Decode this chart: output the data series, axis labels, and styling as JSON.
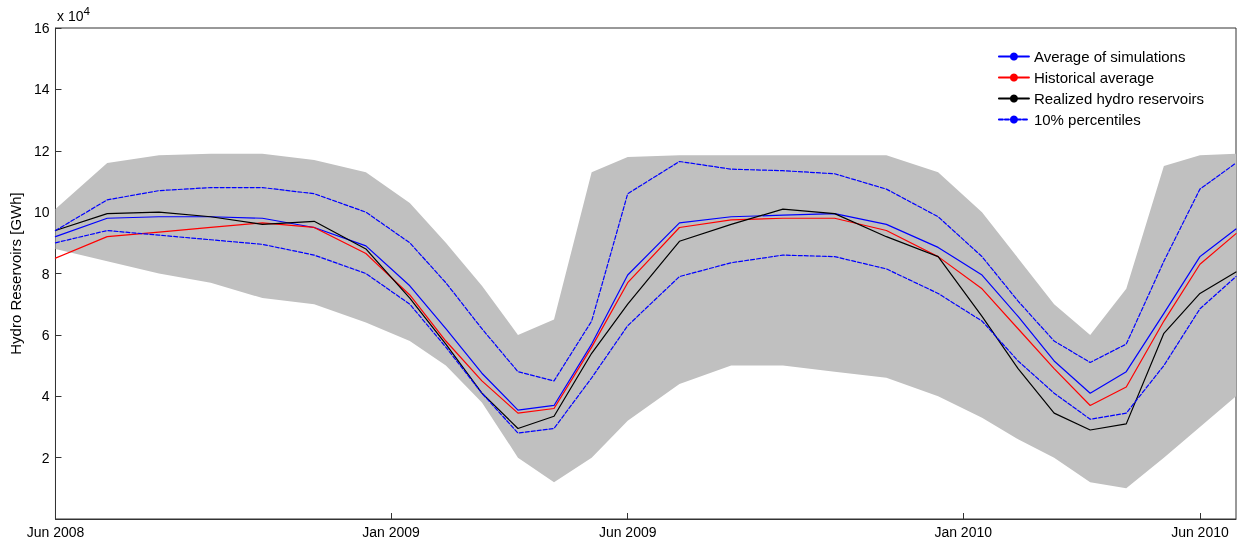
{
  "chart_data": {
    "type": "line",
    "ylabel": "Hydro Reservoirs [GWh]",
    "annotations": [
      "x 10$^{4}$"
    ],
    "x": [
      "2008-06-01",
      "2008-07-04",
      "2008-08-06",
      "2008-09-08",
      "2008-10-11",
      "2008-11-13",
      "2008-12-16",
      "2009-01-13",
      "2009-02-05",
      "2009-02-28",
      "2009-03-23",
      "2009-04-15",
      "2009-05-09",
      "2009-06-01",
      "2009-07-04",
      "2009-08-06",
      "2009-09-08",
      "2009-10-11",
      "2009-11-13",
      "2009-12-16",
      "2010-01-13",
      "2010-02-05",
      "2010-02-28",
      "2010-03-23",
      "2010-04-15",
      "2010-05-09",
      "2010-06-01",
      "2010-06-24"
    ],
    "xlim": [
      "2008-06-01",
      "2010-06-24"
    ],
    "xticks": [
      {
        "value": "2008-06-01",
        "label": "Jun 2008"
      },
      {
        "value": "2009-01-01",
        "label": "Jan 2009"
      },
      {
        "value": "2009-06-01",
        "label": "Jun 2009"
      },
      {
        "value": "2010-01-01",
        "label": "Jan 2010"
      },
      {
        "value": "2010-06-01",
        "label": "Jun 2010"
      }
    ],
    "ylim": [
      0,
      16
    ],
    "yticks": [
      2,
      4,
      6,
      8,
      10,
      12,
      14,
      16
    ],
    "grid": false,
    "legend": "top right",
    "marker": "none",
    "series": [
      {
        "name": "Average of simulations",
        "color": "#0000ff",
        "line_style": "solid",
        "values": [
          9.2,
          9.8,
          9.85,
          9.85,
          9.8,
          9.5,
          8.9,
          7.6,
          6.2,
          4.75,
          3.55,
          3.7,
          5.7,
          7.95,
          9.65,
          9.85,
          9.9,
          9.95,
          9.6,
          8.85,
          7.95,
          6.6,
          5.15,
          4.1,
          4.8,
          6.7,
          8.55,
          9.45
        ],
        "lower": [
          8.8,
          8.4,
          8.0,
          7.7,
          7.2,
          7.0,
          6.4,
          5.8,
          5.0,
          3.8,
          2.0,
          1.2,
          2.0,
          3.2,
          4.4,
          5.0,
          5.0,
          4.8,
          4.6,
          4.0,
          3.3,
          2.6,
          2.0,
          1.2,
          1.0,
          2.0,
          3.0,
          4.0
        ],
        "upper": [
          10.1,
          11.6,
          11.85,
          11.9,
          11.9,
          11.7,
          11.3,
          10.3,
          9.0,
          7.6,
          6.0,
          6.5,
          11.3,
          11.8,
          11.85,
          11.85,
          11.85,
          11.85,
          11.85,
          11.3,
          10.0,
          8.5,
          7.0,
          6.0,
          7.5,
          11.5,
          11.85,
          11.9
        ]
      },
      {
        "name": "Historical average",
        "color": "#ff0000",
        "line_style": "solid",
        "values": [
          8.5,
          9.2,
          9.35,
          9.5,
          9.65,
          9.5,
          8.65,
          7.3,
          5.8,
          4.5,
          3.45,
          3.6,
          5.6,
          7.7,
          9.5,
          9.75,
          9.8,
          9.8,
          9.4,
          8.55,
          7.5,
          6.2,
          4.9,
          3.7,
          4.3,
          6.45,
          8.3,
          9.3
        ]
      },
      {
        "name": "Realized hydro reservoirs",
        "color": "#000000",
        "line_style": "solid",
        "values": [
          9.4,
          9.95,
          10.0,
          9.85,
          9.6,
          9.7,
          8.8,
          7.2,
          5.7,
          4.1,
          2.95,
          3.35,
          5.4,
          7.0,
          9.05,
          9.6,
          10.1,
          9.95,
          9.2,
          8.55,
          6.6,
          4.9,
          3.45,
          2.9,
          3.1,
          6.05,
          7.35,
          8.05
        ]
      },
      {
        "name": "10% percentiles",
        "color": "#0000ff",
        "line_style": "dashed",
        "values": [
          9.4,
          10.4,
          10.7,
          10.8,
          10.8,
          10.6,
          10.0,
          9.0,
          7.7,
          6.2,
          4.8,
          4.5,
          6.45,
          10.6,
          11.65,
          11.4,
          11.35,
          11.25,
          10.75,
          9.85,
          8.55,
          7.1,
          5.8,
          5.1,
          5.7,
          8.4,
          10.75,
          11.6
        ]
      },
      {
        "color": "#0000ff",
        "line_style": "dashed",
        "values": [
          9.0,
          9.4,
          9.25,
          9.1,
          8.95,
          8.6,
          8.0,
          7.0,
          5.6,
          4.1,
          2.8,
          2.95,
          4.6,
          6.3,
          7.9,
          8.35,
          8.6,
          8.55,
          8.15,
          7.35,
          6.45,
          5.15,
          4.1,
          3.25,
          3.45,
          5.0,
          6.85,
          7.9
        ]
      }
    ]
  }
}
